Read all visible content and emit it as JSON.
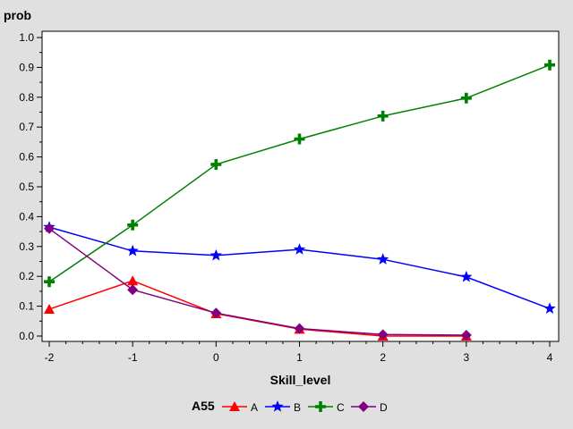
{
  "chart_data": {
    "type": "line",
    "ylabel": "prob",
    "xlabel": "Skill_level",
    "x": [
      -2,
      -1,
      0,
      1,
      2,
      3,
      4
    ],
    "xlim": [
      -2,
      4
    ],
    "ylim": [
      0,
      1.0
    ],
    "x_ticks": [
      "-2",
      "-1",
      "0",
      "1",
      "2",
      "3",
      "4"
    ],
    "y_ticks": [
      "0.0",
      "0.1",
      "0.2",
      "0.3",
      "0.4",
      "0.5",
      "0.6",
      "0.7",
      "0.8",
      "0.9",
      "1.0"
    ],
    "legend_title": "A55",
    "legend_position": "bottom",
    "grid": false,
    "series": [
      {
        "name": "A",
        "color": "#ff0000",
        "marker": "triangle",
        "x": [
          -2,
          -1,
          0,
          1,
          2,
          3
        ],
        "values": [
          0.09,
          0.185,
          0.075,
          0.023,
          0.0,
          0.0
        ]
      },
      {
        "name": "B",
        "color": "#0000ff",
        "marker": "star",
        "x": [
          -2,
          -1,
          0,
          1,
          2,
          3,
          4
        ],
        "values": [
          0.365,
          0.285,
          0.27,
          0.29,
          0.257,
          0.198,
          0.092
        ]
      },
      {
        "name": "C",
        "color": "#008000",
        "marker": "plus",
        "x": [
          -2,
          -1,
          0,
          1,
          2,
          3,
          4
        ],
        "values": [
          0.182,
          0.372,
          0.575,
          0.66,
          0.737,
          0.797,
          0.908
        ]
      },
      {
        "name": "D",
        "color": "#800080",
        "marker": "diamond",
        "x": [
          -2,
          -1,
          0,
          1,
          2,
          3
        ],
        "values": [
          0.36,
          0.155,
          0.077,
          0.025,
          0.005,
          0.003
        ]
      }
    ]
  }
}
